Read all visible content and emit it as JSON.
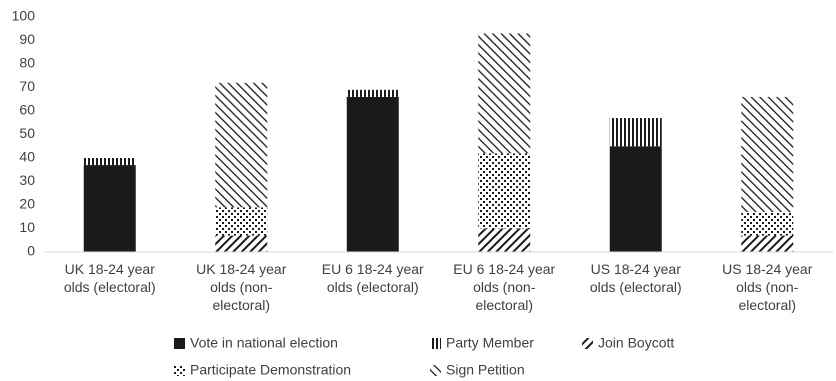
{
  "chart_data": {
    "type": "bar",
    "stacked": true,
    "categories": [
      "UK 18-24 year olds (electoral)",
      "UK 18-24 year olds (non-electoral)",
      "EU 6 18-24 year olds (electoral)",
      "EU 6 18-24 year olds (non-electoral)",
      "US 18-24 year olds (electoral)",
      "US 18-24 year olds (non-electoral)"
    ],
    "series": [
      {
        "name": "Vote in national election",
        "color": "#1a1a1a",
        "values": [
          37,
          0,
          66,
          0,
          45,
          0
        ]
      },
      {
        "name": "Party Member",
        "color": "#1a1a1a",
        "values": [
          3,
          0,
          3,
          0,
          12,
          0
        ]
      },
      {
        "name": "Join Boycott",
        "color": "#1a1a1a",
        "values": [
          0,
          7,
          0,
          10,
          0,
          7
        ]
      },
      {
        "name": "Participate Demonstration",
        "color": "#1a1a1a",
        "values": [
          0,
          12,
          0,
          32,
          0,
          10
        ]
      },
      {
        "name": "Sign Petition",
        "color": "#1a1a1a",
        "values": [
          0,
          53,
          0,
          51,
          0,
          49
        ]
      }
    ],
    "ylim": [
      0,
      100
    ],
    "yticks": [
      0,
      10,
      20,
      30,
      40,
      50,
      60,
      70,
      80,
      90,
      100
    ],
    "grid": false,
    "legend": "bottom"
  }
}
